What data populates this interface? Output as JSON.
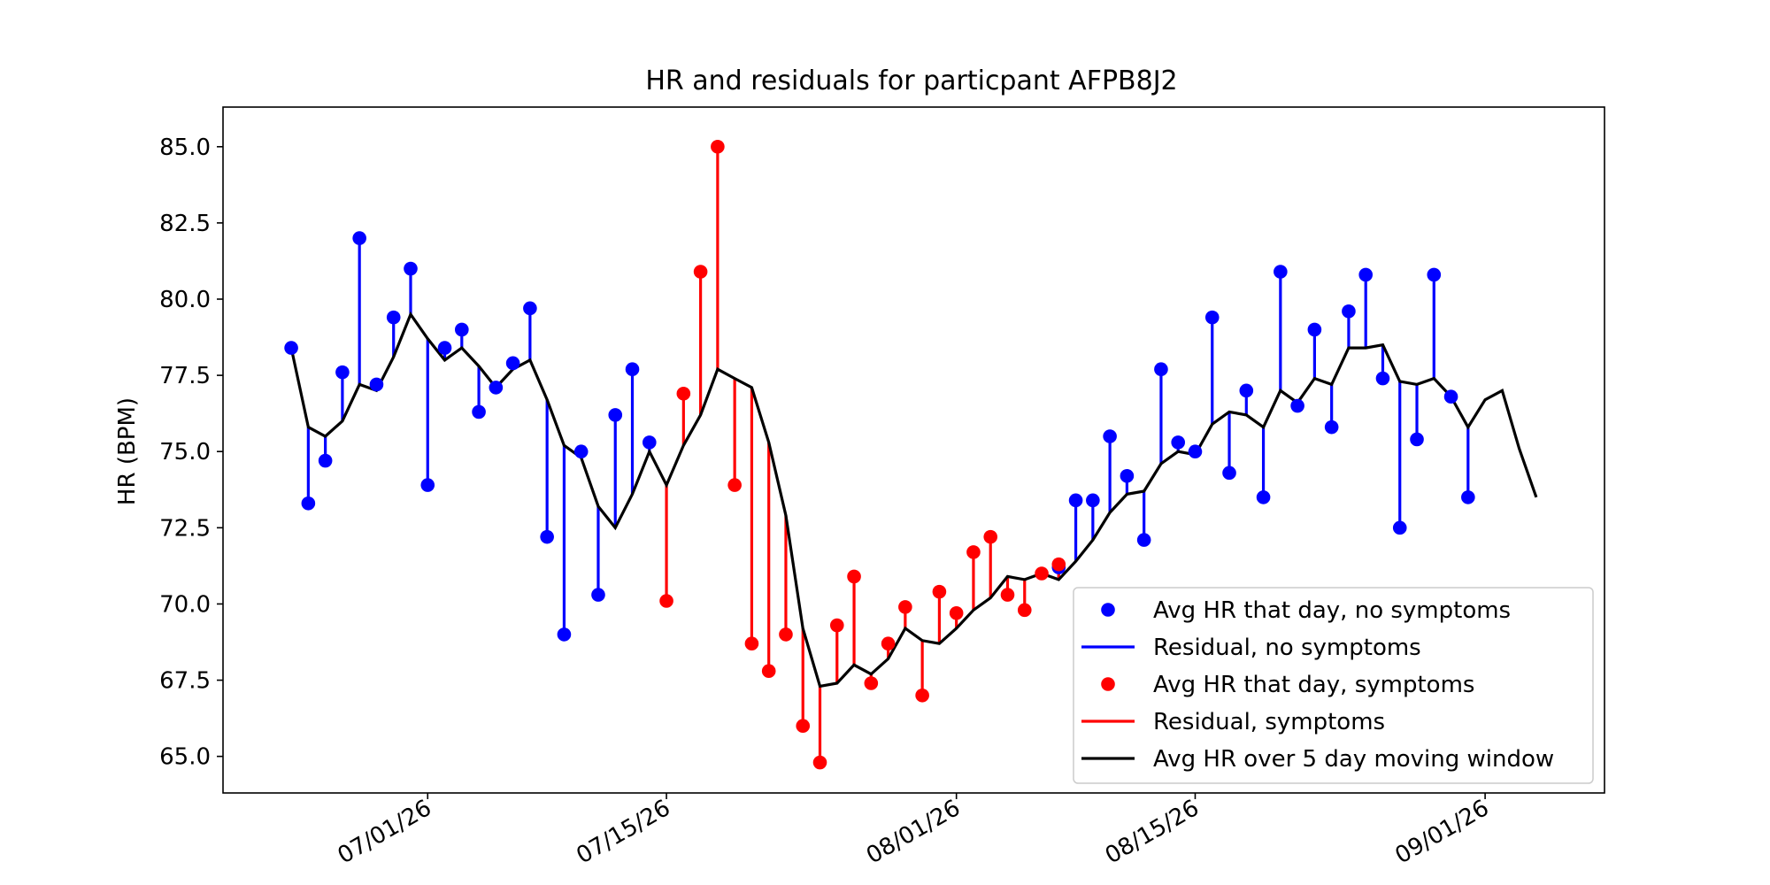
{
  "chart_data": {
    "type": "line",
    "title": "HR and residuals for particpant AFPB8J2",
    "xlabel": "",
    "ylabel": "HR (BPM)",
    "ylim": [
      63.8,
      86.3
    ],
    "yticks": [
      65.0,
      67.5,
      70.0,
      72.5,
      75.0,
      77.5,
      80.0,
      82.5,
      85.0
    ],
    "ytick_labels": [
      "65.0",
      "67.5",
      "70.0",
      "72.5",
      "75.0",
      "77.5",
      "80.0",
      "82.5",
      "85.0"
    ],
    "xlim": [
      "2026-06-19",
      "2026-09-08"
    ],
    "xticks": [
      "2026-07-01",
      "2026-07-15",
      "2026-08-01",
      "2026-08-15",
      "2026-09-01"
    ],
    "xtick_labels": [
      "07/01/26",
      "07/15/26",
      "08/01/26",
      "08/15/26",
      "09/01/26"
    ],
    "grid": false,
    "legend_position": "lower-right",
    "colors": {
      "no_symptoms": "#0000ff",
      "symptoms": "#ff0000",
      "moving_avg": "#000000"
    },
    "series": [
      {
        "name": "Avg HR that day, no symptoms",
        "kind": "scatter",
        "color": "#0000ff",
        "points": [
          {
            "x": "2026-06-23",
            "y": 78.4
          },
          {
            "x": "2026-06-24",
            "y": 73.3
          },
          {
            "x": "2026-06-25",
            "y": 74.7
          },
          {
            "x": "2026-06-26",
            "y": 77.6
          },
          {
            "x": "2026-06-27",
            "y": 82.0
          },
          {
            "x": "2026-06-28",
            "y": 77.2
          },
          {
            "x": "2026-06-29",
            "y": 79.4
          },
          {
            "x": "2026-06-30",
            "y": 81.0
          },
          {
            "x": "2026-07-01",
            "y": 73.9
          },
          {
            "x": "2026-07-02",
            "y": 78.4
          },
          {
            "x": "2026-07-03",
            "y": 79.0
          },
          {
            "x": "2026-07-04",
            "y": 76.3
          },
          {
            "x": "2026-07-05",
            "y": 77.1
          },
          {
            "x": "2026-07-06",
            "y": 77.9
          },
          {
            "x": "2026-07-07",
            "y": 79.7
          },
          {
            "x": "2026-07-08",
            "y": 72.2
          },
          {
            "x": "2026-07-09",
            "y": 69.0
          },
          {
            "x": "2026-07-10",
            "y": 75.0
          },
          {
            "x": "2026-07-11",
            "y": 70.3
          },
          {
            "x": "2026-07-12",
            "y": 76.2
          },
          {
            "x": "2026-07-13",
            "y": 77.7
          },
          {
            "x": "2026-07-14",
            "y": 75.3
          },
          {
            "x": "2026-08-07",
            "y": 71.2
          },
          {
            "x": "2026-08-08",
            "y": 73.4
          },
          {
            "x": "2026-08-09",
            "y": 73.4
          },
          {
            "x": "2026-08-10",
            "y": 75.5
          },
          {
            "x": "2026-08-11",
            "y": 74.2
          },
          {
            "x": "2026-08-12",
            "y": 72.1
          },
          {
            "x": "2026-08-13",
            "y": 77.7
          },
          {
            "x": "2026-08-14",
            "y": 75.3
          },
          {
            "x": "2026-08-15",
            "y": 75.0
          },
          {
            "x": "2026-08-16",
            "y": 79.4
          },
          {
            "x": "2026-08-17",
            "y": 74.3
          },
          {
            "x": "2026-08-18",
            "y": 77.0
          },
          {
            "x": "2026-08-19",
            "y": 73.5
          },
          {
            "x": "2026-08-20",
            "y": 80.9
          },
          {
            "x": "2026-08-21",
            "y": 76.5
          },
          {
            "x": "2026-08-22",
            "y": 79.0
          },
          {
            "x": "2026-08-23",
            "y": 75.8
          },
          {
            "x": "2026-08-24",
            "y": 79.6
          },
          {
            "x": "2026-08-25",
            "y": 80.8
          },
          {
            "x": "2026-08-26",
            "y": 77.4
          },
          {
            "x": "2026-08-27",
            "y": 72.5
          },
          {
            "x": "2026-08-28",
            "y": 75.4
          },
          {
            "x": "2026-08-29",
            "y": 80.8
          },
          {
            "x": "2026-08-30",
            "y": 76.8
          },
          {
            "x": "2026-08-31",
            "y": 73.5
          }
        ]
      },
      {
        "name": "Residual, no symptoms",
        "kind": "residual",
        "color": "#0000ff",
        "of": 0
      },
      {
        "name": "Avg HR that day, symptoms",
        "kind": "scatter",
        "color": "#ff0000",
        "points": [
          {
            "x": "2026-07-15",
            "y": 70.1
          },
          {
            "x": "2026-07-16",
            "y": 76.9
          },
          {
            "x": "2026-07-17",
            "y": 80.9
          },
          {
            "x": "2026-07-18",
            "y": 85.0
          },
          {
            "x": "2026-07-19",
            "y": 73.9
          },
          {
            "x": "2026-07-20",
            "y": 68.7
          },
          {
            "x": "2026-07-21",
            "y": 67.8
          },
          {
            "x": "2026-07-22",
            "y": 69.0
          },
          {
            "x": "2026-07-23",
            "y": 66.0
          },
          {
            "x": "2026-07-24",
            "y": 64.8
          },
          {
            "x": "2026-07-25",
            "y": 69.3
          },
          {
            "x": "2026-07-26",
            "y": 70.9
          },
          {
            "x": "2026-07-27",
            "y": 67.4
          },
          {
            "x": "2026-07-28",
            "y": 68.7
          },
          {
            "x": "2026-07-29",
            "y": 69.9
          },
          {
            "x": "2026-07-30",
            "y": 67.0
          },
          {
            "x": "2026-07-31",
            "y": 70.4
          },
          {
            "x": "2026-08-01",
            "y": 69.7
          },
          {
            "x": "2026-08-02",
            "y": 71.7
          },
          {
            "x": "2026-08-03",
            "y": 72.2
          },
          {
            "x": "2026-08-04",
            "y": 70.3
          },
          {
            "x": "2026-08-05",
            "y": 69.8
          },
          {
            "x": "2026-08-06",
            "y": 71.0
          },
          {
            "x": "2026-08-07",
            "y": 71.3
          }
        ]
      },
      {
        "name": "Residual, symptoms",
        "kind": "residual",
        "color": "#ff0000",
        "of": 2
      },
      {
        "name": "Avg HR over 5 day moving window",
        "kind": "line",
        "color": "#000000",
        "points": [
          {
            "x": "2026-06-23",
            "y": 78.4
          },
          {
            "x": "2026-06-24",
            "y": 75.8
          },
          {
            "x": "2026-06-25",
            "y": 75.5
          },
          {
            "x": "2026-06-26",
            "y": 76.0
          },
          {
            "x": "2026-06-27",
            "y": 77.2
          },
          {
            "x": "2026-06-28",
            "y": 77.0
          },
          {
            "x": "2026-06-29",
            "y": 78.1
          },
          {
            "x": "2026-06-30",
            "y": 79.5
          },
          {
            "x": "2026-07-01",
            "y": 78.7
          },
          {
            "x": "2026-07-02",
            "y": 78.0
          },
          {
            "x": "2026-07-03",
            "y": 78.4
          },
          {
            "x": "2026-07-04",
            "y": 77.8
          },
          {
            "x": "2026-07-05",
            "y": 77.1
          },
          {
            "x": "2026-07-06",
            "y": 77.7
          },
          {
            "x": "2026-07-07",
            "y": 78.0
          },
          {
            "x": "2026-07-08",
            "y": 76.7
          },
          {
            "x": "2026-07-09",
            "y": 75.2
          },
          {
            "x": "2026-07-10",
            "y": 74.8
          },
          {
            "x": "2026-07-11",
            "y": 73.2
          },
          {
            "x": "2026-07-12",
            "y": 72.5
          },
          {
            "x": "2026-07-13",
            "y": 73.6
          },
          {
            "x": "2026-07-14",
            "y": 75.0
          },
          {
            "x": "2026-07-15",
            "y": 73.9
          },
          {
            "x": "2026-07-16",
            "y": 75.2
          },
          {
            "x": "2026-07-17",
            "y": 76.2
          },
          {
            "x": "2026-07-18",
            "y": 77.7
          },
          {
            "x": "2026-07-19",
            "y": 77.4
          },
          {
            "x": "2026-07-20",
            "y": 77.1
          },
          {
            "x": "2026-07-21",
            "y": 75.3
          },
          {
            "x": "2026-07-22",
            "y": 72.9
          },
          {
            "x": "2026-07-23",
            "y": 69.2
          },
          {
            "x": "2026-07-24",
            "y": 67.3
          },
          {
            "x": "2026-07-25",
            "y": 67.4
          },
          {
            "x": "2026-07-26",
            "y": 68.0
          },
          {
            "x": "2026-07-27",
            "y": 67.7
          },
          {
            "x": "2026-07-28",
            "y": 68.2
          },
          {
            "x": "2026-07-29",
            "y": 69.2
          },
          {
            "x": "2026-07-30",
            "y": 68.8
          },
          {
            "x": "2026-07-31",
            "y": 68.7
          },
          {
            "x": "2026-08-01",
            "y": 69.2
          },
          {
            "x": "2026-08-02",
            "y": 69.8
          },
          {
            "x": "2026-08-03",
            "y": 70.2
          },
          {
            "x": "2026-08-04",
            "y": 70.9
          },
          {
            "x": "2026-08-05",
            "y": 70.8
          },
          {
            "x": "2026-08-06",
            "y": 71.0
          },
          {
            "x": "2026-08-07",
            "y": 70.8
          },
          {
            "x": "2026-08-08",
            "y": 71.4
          },
          {
            "x": "2026-08-09",
            "y": 72.1
          },
          {
            "x": "2026-08-10",
            "y": 73.0
          },
          {
            "x": "2026-08-11",
            "y": 73.6
          },
          {
            "x": "2026-08-12",
            "y": 73.7
          },
          {
            "x": "2026-08-13",
            "y": 74.6
          },
          {
            "x": "2026-08-14",
            "y": 75.0
          },
          {
            "x": "2026-08-15",
            "y": 74.9
          },
          {
            "x": "2026-08-16",
            "y": 75.9
          },
          {
            "x": "2026-08-17",
            "y": 76.3
          },
          {
            "x": "2026-08-18",
            "y": 76.2
          },
          {
            "x": "2026-08-19",
            "y": 75.8
          },
          {
            "x": "2026-08-20",
            "y": 77.0
          },
          {
            "x": "2026-08-21",
            "y": 76.6
          },
          {
            "x": "2026-08-22",
            "y": 77.4
          },
          {
            "x": "2026-08-23",
            "y": 77.2
          },
          {
            "x": "2026-08-24",
            "y": 78.4
          },
          {
            "x": "2026-08-25",
            "y": 78.4
          },
          {
            "x": "2026-08-26",
            "y": 78.5
          },
          {
            "x": "2026-08-27",
            "y": 77.3
          },
          {
            "x": "2026-08-28",
            "y": 77.2
          },
          {
            "x": "2026-08-29",
            "y": 77.4
          },
          {
            "x": "2026-08-30",
            "y": 76.8
          },
          {
            "x": "2026-08-31",
            "y": 75.8
          },
          {
            "x": "2026-09-01",
            "y": 76.7
          },
          {
            "x": "2026-09-02",
            "y": 77.0
          },
          {
            "x": "2026-09-03",
            "y": 75.1
          },
          {
            "x": "2026-09-04",
            "y": 73.5
          }
        ]
      }
    ]
  }
}
